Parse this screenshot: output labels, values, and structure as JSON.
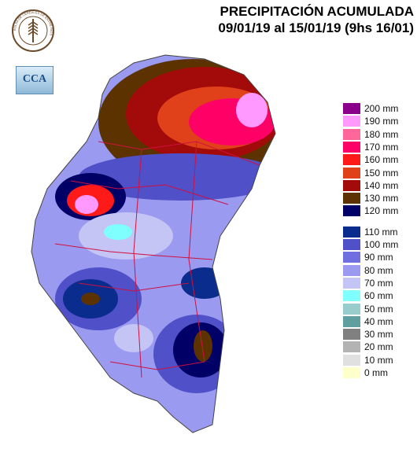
{
  "title": {
    "line1": "PRECIPITACIÓN ACUMULADA",
    "line2": "09/01/19 al 15/01/19 (9hs 16/01)"
  },
  "logo": {
    "text": "BOLSA DE CEREALES DE ENTRE RIOS",
    "icon": "wheat-seal-icon"
  },
  "cca_badge": {
    "text": "CCA"
  },
  "legend": {
    "items": [
      {
        "label": "200 mm",
        "color": "#8b008b"
      },
      {
        "label": "190 mm",
        "color": "#ff99ff"
      },
      {
        "label": "180 mm",
        "color": "#ff6699"
      },
      {
        "label": "170 mm",
        "color": "#ff0066"
      },
      {
        "label": "160 mm",
        "color": "#ff1a1a"
      },
      {
        "label": "150 mm",
        "color": "#e0401a"
      },
      {
        "label": "140 mm",
        "color": "#a30a0a"
      },
      {
        "label": "130 mm",
        "color": "#5c3300"
      },
      {
        "label": "120 mm",
        "color": "#000066"
      },
      {
        "label": "110 mm",
        "color": "#0a2c8c"
      },
      {
        "label": "100 mm",
        "color": "#5050c8"
      },
      {
        "label": "90 mm",
        "color": "#6f6fe0"
      },
      {
        "label": "80 mm",
        "color": "#9a9af0"
      },
      {
        "label": "70 mm",
        "color": "#c4c4f5"
      },
      {
        "label": "60 mm",
        "color": "#80ffff"
      },
      {
        "label": "50 mm",
        "color": "#99cccc"
      },
      {
        "label": "40 mm",
        "color": "#5f9f9f"
      },
      {
        "label": "30 mm",
        "color": "#808080"
      },
      {
        "label": "20 mm",
        "color": "#b3b3b3"
      },
      {
        "label": "10 mm",
        "color": "#e0e0e0"
      },
      {
        "label": "0 mm",
        "color": "#ffffcc"
      }
    ]
  }
}
